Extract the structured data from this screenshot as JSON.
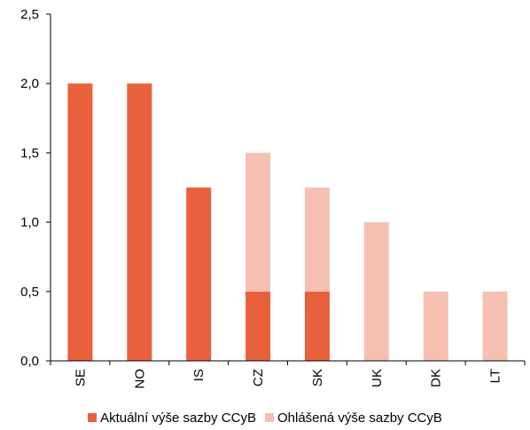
{
  "chart_data": {
    "type": "bar",
    "stacked": true,
    "categories": [
      "SE",
      "NO",
      "IS",
      "CZ",
      "SK",
      "UK",
      "DK",
      "LT"
    ],
    "series": [
      {
        "name": "Aktuální výše sazby CCyB",
        "color": "#E8603C",
        "values": [
          2.0,
          2.0,
          1.25,
          0.5,
          0.5,
          0,
          0,
          0
        ]
      },
      {
        "name": "Ohlášená výše sazby CCyB",
        "color": "#F5BFB1",
        "values": [
          0,
          0,
          0,
          1.0,
          0.75,
          1.0,
          0.5,
          0.5
        ]
      }
    ],
    "ylim": [
      0,
      2.5
    ],
    "yticks": [
      "0,0",
      "0,5",
      "1,0",
      "1,5",
      "2,0",
      "2,5"
    ],
    "ytick_values": [
      0,
      0.5,
      1.0,
      1.5,
      2.0,
      2.5
    ],
    "grid": false,
    "legend_position": "bottom",
    "xlabel": "",
    "ylabel": ""
  }
}
